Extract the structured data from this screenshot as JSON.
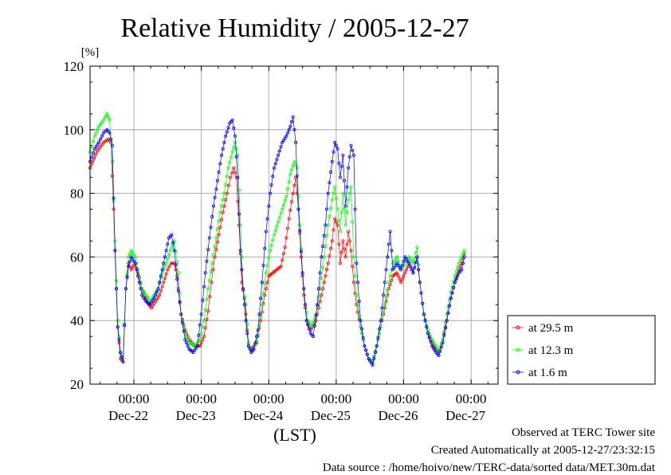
{
  "chart_data": {
    "type": "line",
    "title": "Relative Humidity / 2005-12-27",
    "ylabel": "[%]",
    "xlabel": "(LST)",
    "ylim": [
      20,
      120
    ],
    "yticks": [
      "20",
      "40",
      "60",
      "80",
      "100",
      "120"
    ],
    "x_unit": "days since Dec-21 00:00 (LST)",
    "xlim": [
      0.35,
      6.4
    ],
    "xticks": [
      {
        "pos": 1,
        "top": "00:00",
        "bottom": "Dec-22"
      },
      {
        "pos": 2,
        "top": "00:00",
        "bottom": "Dec-23"
      },
      {
        "pos": 3,
        "top": "00:00",
        "bottom": "Dec-24"
      },
      {
        "pos": 4,
        "top": "00:00",
        "bottom": "Dec-25"
      },
      {
        "pos": 5,
        "top": "00:00",
        "bottom": "Dec-26"
      },
      {
        "pos": 6,
        "top": "00:00",
        "bottom": "Dec-27"
      }
    ],
    "grid": true,
    "legend_position": "right",
    "series": [
      {
        "name": "at 29.5 m",
        "color": "#ff0000",
        "points": [
          [
            0.35,
            88
          ],
          [
            0.45,
            93
          ],
          [
            0.55,
            96
          ],
          [
            0.62,
            97
          ],
          [
            0.66,
            96
          ],
          [
            0.7,
            75
          ],
          [
            0.72,
            62
          ],
          [
            0.76,
            38
          ],
          [
            0.8,
            28
          ],
          [
            0.84,
            27
          ],
          [
            0.88,
            50
          ],
          [
            0.92,
            58
          ],
          [
            0.96,
            56
          ],
          [
            1.02,
            58
          ],
          [
            1.06,
            55
          ],
          [
            1.12,
            50
          ],
          [
            1.18,
            47
          ],
          [
            1.22,
            45
          ],
          [
            1.26,
            44
          ],
          [
            1.32,
            46
          ],
          [
            1.38,
            48
          ],
          [
            1.44,
            52
          ],
          [
            1.5,
            56
          ],
          [
            1.55,
            58
          ],
          [
            1.6,
            58
          ],
          [
            1.64,
            54
          ],
          [
            1.7,
            42
          ],
          [
            1.76,
            37
          ],
          [
            1.82,
            34
          ],
          [
            1.9,
            32
          ],
          [
            1.98,
            32
          ],
          [
            2.04,
            35
          ],
          [
            2.1,
            43
          ],
          [
            2.15,
            52
          ],
          [
            2.2,
            60
          ],
          [
            2.26,
            67
          ],
          [
            2.32,
            74
          ],
          [
            2.38,
            80
          ],
          [
            2.43,
            85
          ],
          [
            2.48,
            88
          ],
          [
            2.52,
            85
          ],
          [
            2.56,
            70
          ],
          [
            2.6,
            52
          ],
          [
            2.64,
            47
          ],
          [
            2.7,
            32
          ],
          [
            2.74,
            31
          ],
          [
            2.78,
            32
          ],
          [
            2.82,
            33
          ],
          [
            2.88,
            40
          ],
          [
            2.94,
            48
          ],
          [
            3.0,
            54
          ],
          [
            3.06,
            55
          ],
          [
            3.12,
            56
          ],
          [
            3.18,
            57
          ],
          [
            3.24,
            63
          ],
          [
            3.3,
            72
          ],
          [
            3.36,
            80
          ],
          [
            3.4,
            85
          ],
          [
            3.44,
            75
          ],
          [
            3.48,
            60
          ],
          [
            3.52,
            48
          ],
          [
            3.56,
            40
          ],
          [
            3.62,
            37
          ],
          [
            3.7,
            40
          ],
          [
            3.76,
            46
          ],
          [
            3.82,
            52
          ],
          [
            3.88,
            58
          ],
          [
            3.94,
            65
          ],
          [
            3.98,
            72
          ],
          [
            4.02,
            70
          ],
          [
            4.06,
            58
          ],
          [
            4.1,
            65
          ],
          [
            4.14,
            60
          ],
          [
            4.18,
            68
          ],
          [
            4.22,
            62
          ],
          [
            4.26,
            52
          ],
          [
            4.3,
            45
          ],
          [
            4.36,
            38
          ],
          [
            4.42,
            32
          ],
          [
            4.48,
            28
          ],
          [
            4.54,
            27
          ],
          [
            4.6,
            32
          ],
          [
            4.66,
            38
          ],
          [
            4.72,
            44
          ],
          [
            4.78,
            50
          ],
          [
            4.84,
            54
          ],
          [
            4.9,
            55
          ],
          [
            4.96,
            52
          ],
          [
            5.02,
            55
          ],
          [
            5.08,
            58
          ],
          [
            5.14,
            55
          ],
          [
            5.2,
            60
          ],
          [
            5.24,
            52
          ],
          [
            5.3,
            42
          ],
          [
            5.36,
            36
          ],
          [
            5.42,
            33
          ],
          [
            5.48,
            31
          ],
          [
            5.52,
            30
          ],
          [
            5.58,
            34
          ],
          [
            5.64,
            40
          ],
          [
            5.7,
            47
          ],
          [
            5.76,
            52
          ],
          [
            5.82,
            56
          ],
          [
            5.86,
            58
          ],
          [
            5.9,
            61
          ]
        ]
      },
      {
        "name": "at 12.3 m",
        "color": "#00ff00",
        "points": [
          [
            0.35,
            93
          ],
          [
            0.42,
            98
          ],
          [
            0.48,
            101
          ],
          [
            0.55,
            103
          ],
          [
            0.6,
            105
          ],
          [
            0.64,
            103
          ],
          [
            0.68,
            90
          ],
          [
            0.72,
            65
          ],
          [
            0.76,
            40
          ],
          [
            0.8,
            30
          ],
          [
            0.84,
            28
          ],
          [
            0.88,
            50
          ],
          [
            0.92,
            60
          ],
          [
            0.96,
            62
          ],
          [
            1.02,
            60
          ],
          [
            1.06,
            56
          ],
          [
            1.12,
            50
          ],
          [
            1.18,
            48
          ],
          [
            1.24,
            46
          ],
          [
            1.3,
            48
          ],
          [
            1.36,
            50
          ],
          [
            1.42,
            55
          ],
          [
            1.48,
            58
          ],
          [
            1.54,
            62
          ],
          [
            1.6,
            65
          ],
          [
            1.66,
            55
          ],
          [
            1.7,
            42
          ],
          [
            1.76,
            36
          ],
          [
            1.82,
            33
          ],
          [
            1.9,
            32
          ],
          [
            1.98,
            34
          ],
          [
            2.04,
            40
          ],
          [
            2.1,
            50
          ],
          [
            2.16,
            58
          ],
          [
            2.22,
            66
          ],
          [
            2.28,
            74
          ],
          [
            2.34,
            80
          ],
          [
            2.4,
            88
          ],
          [
            2.46,
            93
          ],
          [
            2.5,
            96
          ],
          [
            2.54,
            92
          ],
          [
            2.58,
            70
          ],
          [
            2.62,
            50
          ],
          [
            2.66,
            45
          ],
          [
            2.7,
            33
          ],
          [
            2.74,
            30
          ],
          [
            2.78,
            31
          ],
          [
            2.84,
            35
          ],
          [
            2.9,
            45
          ],
          [
            2.96,
            55
          ],
          [
            3.02,
            62
          ],
          [
            3.08,
            67
          ],
          [
            3.14,
            71
          ],
          [
            3.2,
            75
          ],
          [
            3.26,
            79
          ],
          [
            3.32,
            86
          ],
          [
            3.38,
            90
          ],
          [
            3.42,
            88
          ],
          [
            3.46,
            70
          ],
          [
            3.5,
            55
          ],
          [
            3.54,
            45
          ],
          [
            3.58,
            40
          ],
          [
            3.64,
            38
          ],
          [
            3.7,
            42
          ],
          [
            3.76,
            50
          ],
          [
            3.82,
            60
          ],
          [
            3.88,
            70
          ],
          [
            3.94,
            78
          ],
          [
            3.98,
            82
          ],
          [
            4.02,
            75
          ],
          [
            4.06,
            68
          ],
          [
            4.1,
            80
          ],
          [
            4.14,
            70
          ],
          [
            4.18,
            78
          ],
          [
            4.22,
            82
          ],
          [
            4.26,
            60
          ],
          [
            4.3,
            48
          ],
          [
            4.36,
            38
          ],
          [
            4.42,
            32
          ],
          [
            4.48,
            28
          ],
          [
            4.54,
            27
          ],
          [
            4.6,
            32
          ],
          [
            4.66,
            38
          ],
          [
            4.72,
            45
          ],
          [
            4.78,
            52
          ],
          [
            4.84,
            58
          ],
          [
            4.9,
            60
          ],
          [
            4.96,
            56
          ],
          [
            5.02,
            58
          ],
          [
            5.08,
            60
          ],
          [
            5.14,
            58
          ],
          [
            5.2,
            63
          ],
          [
            5.24,
            52
          ],
          [
            5.3,
            42
          ],
          [
            5.36,
            37
          ],
          [
            5.42,
            34
          ],
          [
            5.48,
            32
          ],
          [
            5.52,
            30
          ],
          [
            5.58,
            34
          ],
          [
            5.64,
            42
          ],
          [
            5.7,
            49
          ],
          [
            5.76,
            54
          ],
          [
            5.82,
            58
          ],
          [
            5.86,
            60
          ],
          [
            5.9,
            62
          ]
        ]
      },
      {
        "name": "at 1.6 m",
        "color": "#0000ff",
        "points": [
          [
            0.35,
            90
          ],
          [
            0.42,
            94
          ],
          [
            0.48,
            96
          ],
          [
            0.55,
            99
          ],
          [
            0.6,
            100
          ],
          [
            0.64,
            99
          ],
          [
            0.68,
            95
          ],
          [
            0.72,
            62
          ],
          [
            0.76,
            38
          ],
          [
            0.8,
            30
          ],
          [
            0.84,
            27
          ],
          [
            0.88,
            50
          ],
          [
            0.92,
            57
          ],
          [
            0.96,
            60
          ],
          [
            1.02,
            58
          ],
          [
            1.06,
            54
          ],
          [
            1.12,
            48
          ],
          [
            1.18,
            46
          ],
          [
            1.24,
            45
          ],
          [
            1.3,
            47
          ],
          [
            1.36,
            50
          ],
          [
            1.42,
            56
          ],
          [
            1.48,
            62
          ],
          [
            1.52,
            66
          ],
          [
            1.56,
            67
          ],
          [
            1.6,
            62
          ],
          [
            1.64,
            53
          ],
          [
            1.7,
            42
          ],
          [
            1.76,
            34
          ],
          [
            1.82,
            31
          ],
          [
            1.88,
            30
          ],
          [
            1.94,
            32
          ],
          [
            2.0,
            42
          ],
          [
            2.06,
            55
          ],
          [
            2.12,
            66
          ],
          [
            2.18,
            76
          ],
          [
            2.24,
            84
          ],
          [
            2.3,
            92
          ],
          [
            2.36,
            98
          ],
          [
            2.42,
            102
          ],
          [
            2.46,
            103
          ],
          [
            2.5,
            98
          ],
          [
            2.54,
            85
          ],
          [
            2.58,
            62
          ],
          [
            2.62,
            50
          ],
          [
            2.66,
            40
          ],
          [
            2.7,
            32
          ],
          [
            2.74,
            30
          ],
          [
            2.78,
            31
          ],
          [
            2.84,
            37
          ],
          [
            2.9,
            52
          ],
          [
            2.96,
            68
          ],
          [
            3.02,
            80
          ],
          [
            3.08,
            88
          ],
          [
            3.14,
            92
          ],
          [
            3.2,
            96
          ],
          [
            3.26,
            98
          ],
          [
            3.32,
            101
          ],
          [
            3.36,
            104
          ],
          [
            3.4,
            96
          ],
          [
            3.44,
            75
          ],
          [
            3.5,
            55
          ],
          [
            3.56,
            40
          ],
          [
            3.62,
            36
          ],
          [
            3.66,
            35
          ],
          [
            3.72,
            45
          ],
          [
            3.78,
            60
          ],
          [
            3.84,
            70
          ],
          [
            3.88,
            80
          ],
          [
            3.94,
            90
          ],
          [
            3.98,
            96
          ],
          [
            4.02,
            94
          ],
          [
            4.06,
            85
          ],
          [
            4.1,
            92
          ],
          [
            4.14,
            76
          ],
          [
            4.18,
            88
          ],
          [
            4.22,
            95
          ],
          [
            4.26,
            92
          ],
          [
            4.3,
            58
          ],
          [
            4.36,
            40
          ],
          [
            4.42,
            32
          ],
          [
            4.48,
            28
          ],
          [
            4.54,
            26
          ],
          [
            4.6,
            32
          ],
          [
            4.66,
            40
          ],
          [
            4.72,
            52
          ],
          [
            4.76,
            60
          ],
          [
            4.8,
            68
          ],
          [
            4.84,
            56
          ],
          [
            4.9,
            58
          ],
          [
            4.96,
            56
          ],
          [
            5.02,
            60
          ],
          [
            5.08,
            58
          ],
          [
            5.14,
            55
          ],
          [
            5.2,
            60
          ],
          [
            5.24,
            52
          ],
          [
            5.3,
            42
          ],
          [
            5.36,
            36
          ],
          [
            5.42,
            32
          ],
          [
            5.48,
            30
          ],
          [
            5.52,
            29
          ],
          [
            5.58,
            33
          ],
          [
            5.64,
            40
          ],
          [
            5.7,
            47
          ],
          [
            5.76,
            52
          ],
          [
            5.82,
            55
          ],
          [
            5.86,
            56
          ],
          [
            5.9,
            60
          ]
        ]
      }
    ]
  },
  "footer": {
    "site": "Observed at TERC Tower site",
    "created": "Created Automatically at 2005-12-27/23:32:15",
    "source": "Data source : /home/hoivo/new/TERC-data/sorted  data/MET.30m.dat"
  }
}
